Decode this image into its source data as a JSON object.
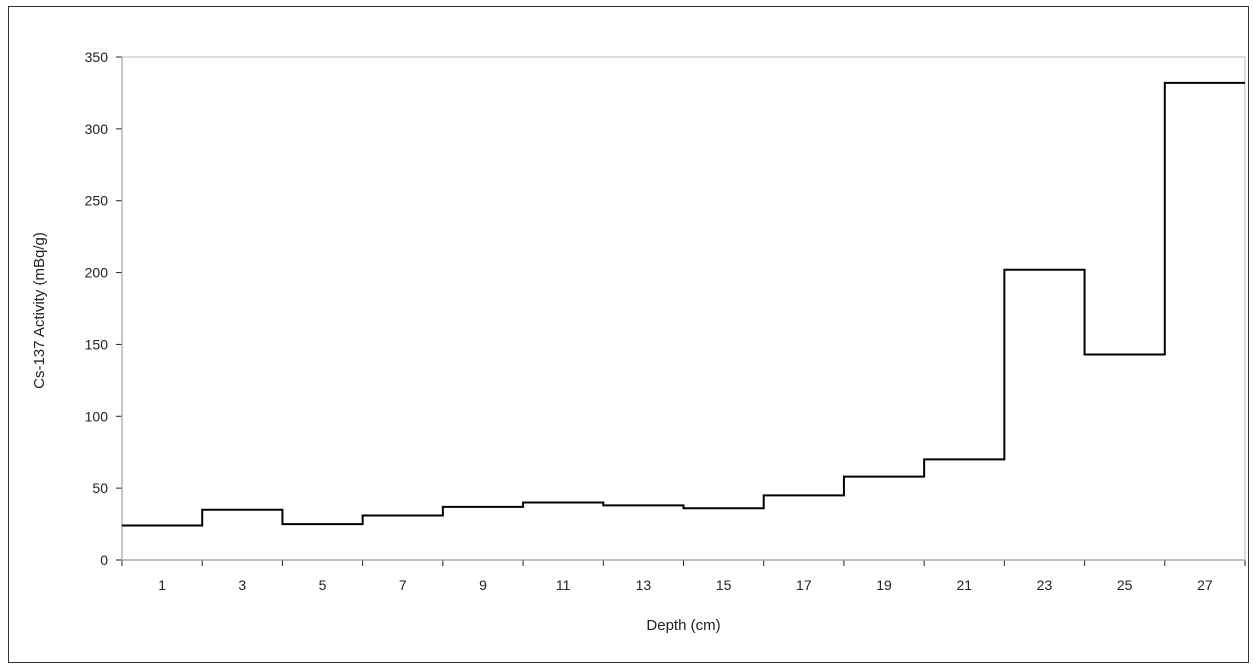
{
  "chart_data": {
    "type": "line",
    "subtype": "step",
    "title": "",
    "xlabel": "Depth (cm)",
    "ylabel": "Cs-137 Activity (mBq/g)",
    "xlim": [
      0,
      28
    ],
    "ylim": [
      0,
      350
    ],
    "x_ticks": [
      1,
      3,
      5,
      7,
      9,
      11,
      13,
      15,
      17,
      19,
      21,
      23,
      25,
      27
    ],
    "y_ticks": [
      0,
      50,
      100,
      150,
      200,
      250,
      300,
      350
    ],
    "grid": false,
    "legend": "none",
    "line_color": "#000000",
    "intervals": [
      {
        "from": 0,
        "to": 2,
        "value": 24
      },
      {
        "from": 2,
        "to": 4,
        "value": 35
      },
      {
        "from": 4,
        "to": 6,
        "value": 25
      },
      {
        "from": 6,
        "to": 8,
        "value": 31
      },
      {
        "from": 8,
        "to": 10,
        "value": 37
      },
      {
        "from": 10,
        "to": 12,
        "value": 40
      },
      {
        "from": 12,
        "to": 14,
        "value": 38
      },
      {
        "from": 14,
        "to": 16,
        "value": 36
      },
      {
        "from": 16,
        "to": 18,
        "value": 45
      },
      {
        "from": 18,
        "to": 20,
        "value": 58
      },
      {
        "from": 20,
        "to": 22,
        "value": 70
      },
      {
        "from": 22,
        "to": 24,
        "value": 202
      },
      {
        "from": 24,
        "to": 26,
        "value": 143
      },
      {
        "from": 26,
        "to": 28,
        "value": 332
      }
    ]
  }
}
